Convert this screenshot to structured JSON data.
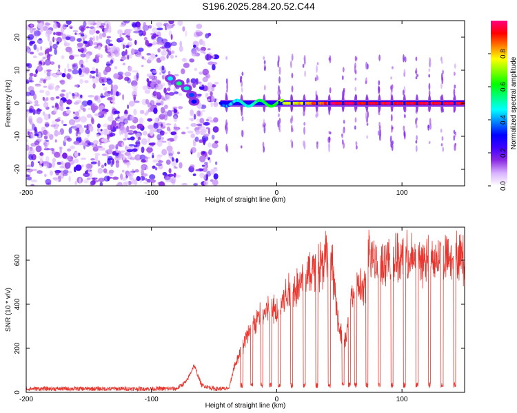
{
  "title": "S196.2025.284.20.52.C44",
  "colors": {
    "snr_line": "#e8362e",
    "axis": "#000000",
    "background": "#ffffff"
  },
  "chart_data": [
    {
      "type": "heatmap",
      "panel": "top",
      "xlabel": "Height of straight line (km)",
      "ylabel": "Frequency (Hz)",
      "xlim": [
        -200,
        150
      ],
      "ylim": [
        -25,
        25
      ],
      "xticks": [
        -200,
        -100,
        0,
        100
      ],
      "yticks": [
        -20,
        -10,
        0,
        10,
        20
      ],
      "colorbar": {
        "label": "Normalized spectral amplitude",
        "range": [
          0,
          1
        ],
        "ticks": [
          0.0,
          0.2,
          0.4,
          0.6,
          0.8
        ],
        "colormap": [
          "#ffffff",
          "#d9b3ff",
          "#8a2be2",
          "#4000ff",
          "#0000ff",
          "#0080ff",
          "#00ffff",
          "#00ff80",
          "#00ff00",
          "#80ff00",
          "#ffff00",
          "#ff8000",
          "#ff0000",
          "#ff0080"
        ]
      },
      "noise_region": {
        "x_from": -200,
        "x_to": -48,
        "gap_x": [
          -80,
          -68
        ],
        "amplitude_max": 0.2
      },
      "sloped_tone": [
        {
          "x": -85,
          "freq": 7.5,
          "amp": 0.45
        },
        {
          "x": -78,
          "freq": 6.0,
          "amp": 0.55
        },
        {
          "x": -72,
          "freq": 4.5,
          "amp": 0.5
        },
        {
          "x": -68,
          "freq": 2.5,
          "amp": 0.35
        },
        {
          "x": -66,
          "freq": 0.5,
          "amp": 0.3
        }
      ],
      "carrier_line": {
        "freq": 0,
        "x_from": -45,
        "x_to": 150,
        "amp_start": 0.35,
        "amp_end": 0.95
      },
      "pulse_spikes_x": [
        -40,
        -28,
        -10,
        2,
        12,
        22,
        32,
        42,
        53,
        63,
        72,
        82,
        92,
        102,
        112,
        122,
        132,
        142
      ]
    },
    {
      "type": "line",
      "panel": "bottom",
      "xlabel": "Height of straight line (km)",
      "ylabel": "SNR (10 * v/v)",
      "xlim": [
        -200,
        150
      ],
      "ylim": [
        0,
        750
      ],
      "xticks": [
        -200,
        -100,
        0,
        100
      ],
      "yticks": [
        0,
        200,
        400,
        600
      ],
      "series": [
        {
          "name": "SNR",
          "envelope_x": [
            -200,
            -80,
            -72,
            -66,
            -60,
            -50,
            -38,
            -34,
            -28,
            -20,
            -12,
            -5,
            0,
            8,
            15,
            20,
            30,
            35,
            40,
            45,
            50,
            55,
            58,
            62,
            66,
            70,
            74,
            80,
            90,
            100,
            110,
            120,
            130,
            140,
            150
          ],
          "envelope_y": [
            20,
            20,
            60,
            150,
            40,
            20,
            20,
            130,
            220,
            330,
            380,
            420,
            400,
            490,
            520,
            560,
            620,
            640,
            690,
            600,
            300,
            250,
            480,
            500,
            530,
            500,
            700,
            660,
            650,
            670,
            660,
            660,
            670,
            680,
            660
          ],
          "dropout_x": [
            -28,
            -20,
            -12,
            -5,
            2,
            12,
            22,
            32,
            42,
            53,
            58,
            63,
            72,
            82,
            92,
            102,
            112,
            122,
            132,
            142
          ],
          "dropout_floor": 20
        }
      ]
    }
  ]
}
